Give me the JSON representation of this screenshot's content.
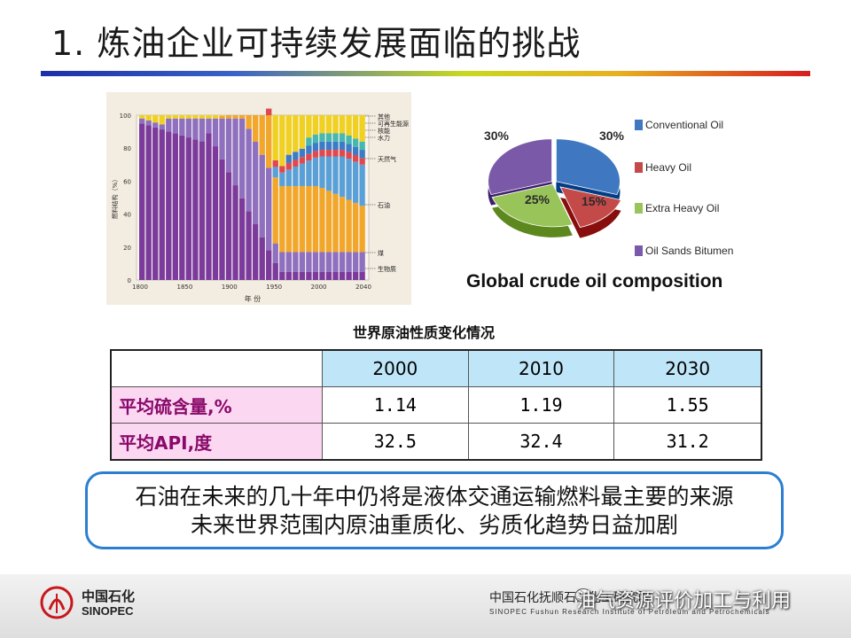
{
  "slide": {
    "title": "1. 炼油企业可持续发展面临的挑战"
  },
  "stack_chart": {
    "ylabel": "燃料结构（%）",
    "xlabel": "年 份",
    "yticks": [
      "100",
      "80",
      "60",
      "40",
      "20",
      "0"
    ],
    "xticks": [
      "1800",
      "1850",
      "1900",
      "1950",
      "2000",
      "2040"
    ],
    "legend": [
      "其他",
      "可再生能源",
      "核能",
      "水力",
      "天然气",
      "石油",
      "煤",
      "生物质"
    ],
    "colors": {
      "biomass": "#7b3a9c",
      "coal": "#8e6fc0",
      "oil": "#f2a62a",
      "gas": "#5aa0d8",
      "hydro": "#e0484e",
      "nuclear": "#3b7bc8",
      "renew": "#46b8b0",
      "other": "#f0d020"
    }
  },
  "pie_chart": {
    "caption": "Global crude oil composition",
    "colors": {
      "conventional": "#3f78c0",
      "heavy": "#c44a4a",
      "extra_heavy": "#98c45a",
      "bitumen": "#7a5aa8"
    }
  },
  "chart_data": {
    "type": "pie",
    "title": "Global crude oil composition",
    "categories": [
      "Conventional Oil",
      "Heavy Oil",
      "Extra Heavy Oil",
      "Oil Sands Bitumen"
    ],
    "values": [
      30,
      15,
      25,
      30
    ],
    "labels": [
      "30%",
      "15%",
      "25%",
      "30%"
    ],
    "legend_position": "right"
  },
  "table": {
    "caption": "世界原油性质变化情况",
    "columns": [
      "2000",
      "2010",
      "2030"
    ],
    "rows": [
      {
        "label": "平均硫含量,%",
        "values": [
          "1.14",
          "1.19",
          "1.55"
        ]
      },
      {
        "label": "平均API,度",
        "values": [
          "32.5",
          "32.4",
          "31.2"
        ]
      }
    ]
  },
  "callout": {
    "line1": "石油在未来的几十年中仍将是液体交通运输燃料最主要的来源",
    "line2": "未来世界范围内原油重质化、劣质化趋势日益加剧"
  },
  "footer": {
    "logo_cn": "中国石化",
    "logo_en": "SINOPEC",
    "institute_cn": "中国石化抚顺石油化工研究院",
    "institute_en": "SINOPEC Fushun Research Institute of Petroleum and Petrochemicals",
    "watermark": "油气资源评价加工与利用"
  }
}
